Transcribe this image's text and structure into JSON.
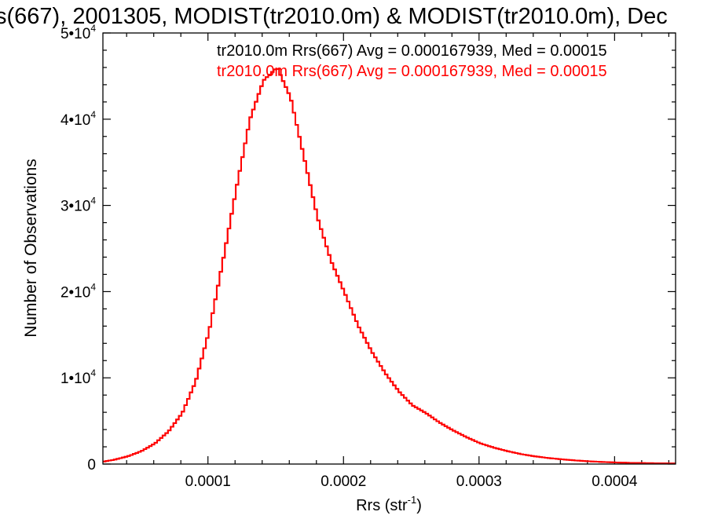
{
  "chart_data": {
    "type": "line",
    "title": "s(667), 2001305, MODIST(tr2010.0m) & MODIST(tr2010.0m), Dec",
    "xlabel": "Rrs (str",
    "xlabel_sup": "-1",
    "xlabel_close": ")",
    "ylabel": "Number of Observations",
    "xlim": [
      2.25e-05,
      0.000445
    ],
    "ylim": [
      0,
      50000
    ],
    "x_ticks": [
      {
        "value": 0.0001,
        "label": "0.0001"
      },
      {
        "value": 0.0002,
        "label": "0.0002"
      },
      {
        "value": 0.0003,
        "label": "0.0003"
      },
      {
        "value": 0.0004,
        "label": "0.0004"
      }
    ],
    "y_ticks": [
      {
        "value": 0,
        "mant": "0",
        "exp": ""
      },
      {
        "value": 10000,
        "mant": "1•10",
        "exp": "4"
      },
      {
        "value": 20000,
        "mant": "2•10",
        "exp": "4"
      },
      {
        "value": 30000,
        "mant": "3•10",
        "exp": "4"
      },
      {
        "value": 40000,
        "mant": "4•10",
        "exp": "4"
      },
      {
        "value": 50000,
        "mant": "5•10",
        "exp": "4"
      }
    ],
    "annotations": [
      {
        "text": "tr2010.0m Rrs(667) Avg = 0.000167939, Med = 0.00015",
        "color": "#000000"
      },
      {
        "text": "tr2010.0m Rrs(667) Avg = 0.000167939, Med = 0.00015",
        "color": "#ff0000"
      }
    ],
    "series": [
      {
        "color": "#ff0000",
        "x": [
          2.25e-05,
          3e-05,
          4e-05,
          5e-05,
          6e-05,
          7e-05,
          8e-05,
          9e-05,
          0.0001,
          0.00011,
          0.00012,
          0.00013,
          0.00014,
          0.00015,
          0.00016,
          0.00017,
          0.00018,
          0.00019,
          0.0002,
          0.00021,
          0.00022,
          0.00023,
          0.00024,
          0.00025,
          0.00026,
          0.00027,
          0.00028,
          0.00029,
          0.0003,
          0.00031,
          0.00032,
          0.00033,
          0.00034,
          0.00035,
          0.00036,
          0.00037,
          0.00038,
          0.00039,
          0.0004,
          0.00041,
          0.00042,
          0.00043,
          0.00044,
          0.000445
        ],
        "y": [
          300,
          500,
          900,
          1500,
          2400,
          3800,
          5900,
          9600,
          15500,
          23500,
          32000,
          40000,
          44500,
          46000,
          42500,
          35500,
          28500,
          23500,
          19800,
          16000,
          13000,
          10500,
          8400,
          6800,
          5900,
          4800,
          3900,
          3100,
          2400,
          1900,
          1500,
          1150,
          900,
          700,
          550,
          420,
          320,
          240,
          180,
          140,
          110,
          90,
          70,
          60
        ]
      },
      {
        "color": "#ff0000",
        "x": [
          2.25e-05,
          3e-05,
          4e-05,
          5e-05,
          6e-05,
          7e-05,
          8e-05,
          9e-05,
          0.0001,
          0.00011,
          0.00012,
          0.00013,
          0.00014,
          0.00015,
          0.00016,
          0.00017,
          0.00018,
          0.00019,
          0.0002,
          0.00021,
          0.00022,
          0.00023,
          0.00024,
          0.00025,
          0.00026,
          0.00027,
          0.00028,
          0.00029,
          0.0003,
          0.00031,
          0.00032,
          0.00033,
          0.00034,
          0.00035,
          0.00036,
          0.00037,
          0.00038,
          0.00039,
          0.0004,
          0.00041,
          0.00042,
          0.00043,
          0.00044,
          0.000445
        ],
        "y": [
          300,
          500,
          900,
          1500,
          2400,
          3800,
          5900,
          9600,
          15500,
          23500,
          32000,
          40000,
          44500,
          46000,
          42500,
          35500,
          28500,
          23500,
          19800,
          16000,
          13000,
          10500,
          8400,
          6800,
          5900,
          4800,
          3900,
          3100,
          2400,
          1900,
          1500,
          1150,
          900,
          700,
          550,
          420,
          320,
          240,
          180,
          140,
          110,
          90,
          70,
          60
        ]
      }
    ]
  }
}
